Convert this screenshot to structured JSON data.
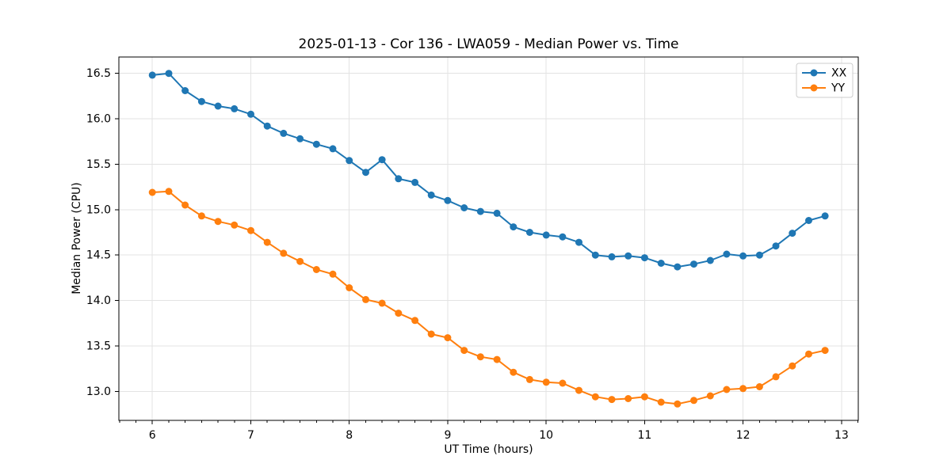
{
  "chart_data": {
    "type": "line",
    "title": "2025-01-13 - Cor 136 - LWA059 - Median Power vs. Time",
    "xlabel": "UT Time (hours)",
    "ylabel": "Median Power (CPU)",
    "xlim": [
      5.66,
      13.17
    ],
    "ylim": [
      12.68,
      16.68
    ],
    "x_ticks": [
      6,
      7,
      8,
      9,
      10,
      11,
      12,
      13
    ],
    "x_tick_labels": [
      "6",
      "7",
      "8",
      "9",
      "10",
      "11",
      "12",
      "13"
    ],
    "y_ticks": [
      13.0,
      13.5,
      14.0,
      14.5,
      15.0,
      15.5,
      16.0,
      16.5
    ],
    "y_tick_labels": [
      "13.0",
      "13.5",
      "14.0",
      "14.5",
      "15.0",
      "15.5",
      "16.0",
      "16.5"
    ],
    "minor_x_tick_step_hours": 0.1667,
    "grid": true,
    "legend_position": "upper right",
    "colors": {
      "xx": "#1f77b4",
      "yy": "#ff7f0e",
      "grid": "#e3e3e3",
      "axis": "#000000",
      "legend_border": "#cccccc"
    },
    "x": [
      6.0,
      6.167,
      6.333,
      6.5,
      6.667,
      6.833,
      7.0,
      7.167,
      7.333,
      7.5,
      7.667,
      7.833,
      8.0,
      8.167,
      8.333,
      8.5,
      8.667,
      8.833,
      9.0,
      9.167,
      9.333,
      9.5,
      9.667,
      9.833,
      10.0,
      10.167,
      10.333,
      10.5,
      10.667,
      10.833,
      11.0,
      11.167,
      11.333,
      11.5,
      11.667,
      11.833,
      12.0,
      12.167,
      12.333,
      12.5,
      12.667,
      12.833
    ],
    "series": [
      {
        "name": "XX",
        "color": "#1f77b4",
        "values": [
          16.48,
          16.5,
          16.31,
          16.19,
          16.14,
          16.11,
          16.05,
          15.92,
          15.84,
          15.78,
          15.72,
          15.67,
          15.54,
          15.41,
          15.55,
          15.34,
          15.3,
          15.16,
          15.1,
          15.02,
          14.98,
          14.96,
          14.81,
          14.75,
          14.72,
          14.7,
          14.64,
          14.5,
          14.48,
          14.49,
          14.47,
          14.41,
          14.37,
          14.4,
          14.44,
          14.51,
          14.49,
          14.5,
          14.6,
          14.74,
          14.88,
          14.93
        ]
      },
      {
        "name": "YY",
        "color": "#ff7f0e",
        "values": [
          15.19,
          15.2,
          15.05,
          14.93,
          14.87,
          14.83,
          14.77,
          14.64,
          14.52,
          14.43,
          14.34,
          14.29,
          14.14,
          14.01,
          13.97,
          13.86,
          13.78,
          13.63,
          13.59,
          13.45,
          13.38,
          13.35,
          13.21,
          13.13,
          13.1,
          13.09,
          13.01,
          12.94,
          12.91,
          12.92,
          12.94,
          12.88,
          12.86,
          12.9,
          12.95,
          13.02,
          13.03,
          13.05,
          13.16,
          13.28,
          13.41,
          13.45
        ]
      }
    ]
  }
}
